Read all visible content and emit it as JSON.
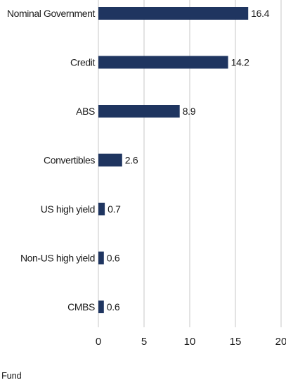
{
  "chart_data": {
    "type": "bar",
    "orientation": "horizontal",
    "categories": [
      "Nominal Government",
      "Credit",
      "ABS",
      "Convertibles",
      "US high yield",
      "Non-US high yield",
      "CMBS"
    ],
    "series": [
      {
        "name": "Fund",
        "values": [
          16.4,
          14.2,
          8.9,
          2.6,
          0.7,
          0.6,
          0.6
        ]
      }
    ],
    "value_labels": [
      "16.4",
      "14.2",
      "8.9",
      "2.6",
      "0.7",
      "0.6",
      "0.6"
    ],
    "xticks": [
      0,
      5,
      10,
      15,
      20
    ],
    "tick_labels": [
      "0",
      "5",
      "10",
      "15",
      "20"
    ],
    "xlim": [
      0,
      20
    ],
    "grid": true,
    "legend_position": "bottom-left",
    "colors": {
      "bar": "#1f3560",
      "grid": "#e3e3e3"
    }
  },
  "legend": {
    "label": "Fund"
  }
}
